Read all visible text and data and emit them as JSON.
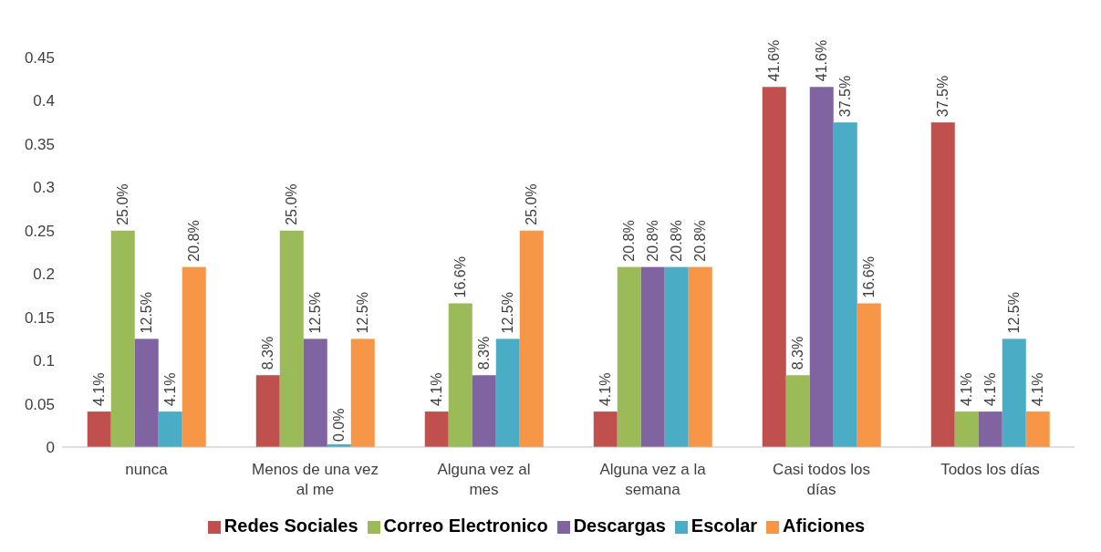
{
  "chart_data": {
    "type": "bar",
    "categories": [
      "nunca",
      "Menos de una vez al me",
      "Alguna vez al mes",
      "Alguna vez a la semana",
      "Casi todos los días",
      "Todos los días"
    ],
    "series": [
      {
        "name": "Redes Sociales",
        "color": "#c0504d",
        "values": [
          0.041,
          0.083,
          0.041,
          0.041,
          0.416,
          0.375
        ],
        "value_labels": [
          "4.1%",
          "8.3%",
          "4.1%",
          "4.1%",
          "41.6%",
          "37.5%"
        ]
      },
      {
        "name": "Correo Electronico",
        "color": "#9bbb59",
        "values": [
          0.25,
          0.25,
          0.166,
          0.208,
          0.083,
          0.041
        ],
        "value_labels": [
          "25.0%",
          "25.0%",
          "16.6%",
          "20.8%",
          "8.3%",
          "4.1%"
        ]
      },
      {
        "name": "Descargas",
        "color": "#8064a2",
        "values": [
          0.125,
          0.125,
          0.083,
          0.208,
          0.416,
          0.041
        ],
        "value_labels": [
          "12.5%",
          "12.5%",
          "8.3%",
          "20.8%",
          "41.6%",
          "4.1%"
        ]
      },
      {
        "name": "Escolar",
        "color": "#4bacc6",
        "values": [
          0.041,
          0.0,
          0.125,
          0.208,
          0.375,
          0.125
        ],
        "value_labels": [
          "4.1%",
          "0.0%",
          "12.5%",
          "20.8%",
          "37.5%",
          "12.5%"
        ]
      },
      {
        "name": "Aficiones",
        "color": "#f79646",
        "values": [
          0.208,
          0.125,
          0.25,
          0.208,
          0.166,
          0.041
        ],
        "value_labels": [
          "20.8%",
          "12.5%",
          "25.0%",
          "20.8%",
          "16.6%",
          "4.1%"
        ]
      }
    ],
    "ylim": [
      0,
      0.45
    ],
    "yticks": [
      0,
      0.05,
      0.1,
      0.15,
      0.2,
      0.25,
      0.3,
      0.35,
      0.4,
      0.45
    ],
    "legend": "bottom"
  }
}
